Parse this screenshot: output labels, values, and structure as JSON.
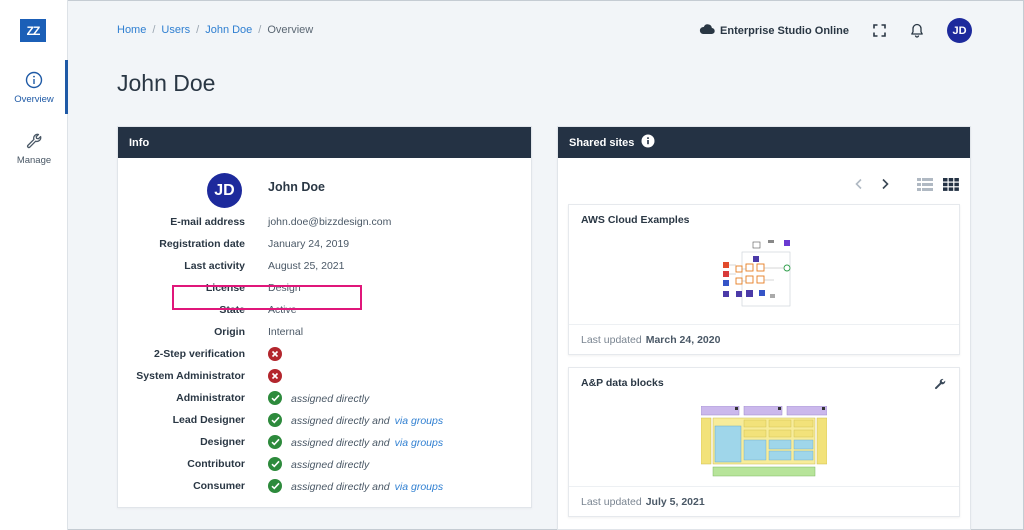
{
  "app": {
    "logo_text": "ZZ",
    "brand_color": "#1b5fb7",
    "header_color": "#243244",
    "accent_link": "#2f7fd1"
  },
  "sidebar": {
    "items": [
      {
        "label": "Overview",
        "icon": "info-circle-icon",
        "active": true
      },
      {
        "label": "Manage",
        "icon": "wrench-icon",
        "active": false
      }
    ]
  },
  "breadcrumb": {
    "items": [
      "Home",
      "Users",
      "John Doe"
    ],
    "current": "Overview",
    "separator": "/"
  },
  "header": {
    "studio": "Enterprise Studio Online",
    "avatar": "JD"
  },
  "page": {
    "title": "John Doe"
  },
  "info": {
    "title": "Info",
    "avatar": "JD",
    "name": "John Doe",
    "fields": [
      {
        "label": "E-mail address",
        "value": "john.doe@bizzdesign.com"
      },
      {
        "label": "Registration date",
        "value": "January 24, 2019"
      },
      {
        "label": "Last activity",
        "value": "August 25, 2021"
      },
      {
        "label": "License",
        "value": "Design"
      },
      {
        "label": "State",
        "value": "Active"
      },
      {
        "label": "Origin",
        "value": "Internal"
      }
    ],
    "flags": [
      {
        "label": "2-Step verification",
        "status": "no"
      },
      {
        "label": "System Administrator",
        "status": "no"
      }
    ],
    "roles": [
      {
        "label": "Administrator",
        "text": "assigned directly",
        "via": ""
      },
      {
        "label": "Lead Designer",
        "text": "assigned directly and",
        "via": "via groups"
      },
      {
        "label": "Designer",
        "text": "assigned directly and",
        "via": "via groups"
      },
      {
        "label": "Contributor",
        "text": "assigned directly",
        "via": ""
      },
      {
        "label": "Consumer",
        "text": "assigned directly and",
        "via": "via groups"
      }
    ]
  },
  "shared": {
    "title": "Shared sites",
    "sites": [
      {
        "title": "AWS Cloud Examples",
        "updated_label": "Last updated",
        "updated": "March 24, 2020"
      },
      {
        "title": "A&P data blocks",
        "updated_label": "Last updated",
        "updated": "July 5, 2021"
      }
    ]
  }
}
